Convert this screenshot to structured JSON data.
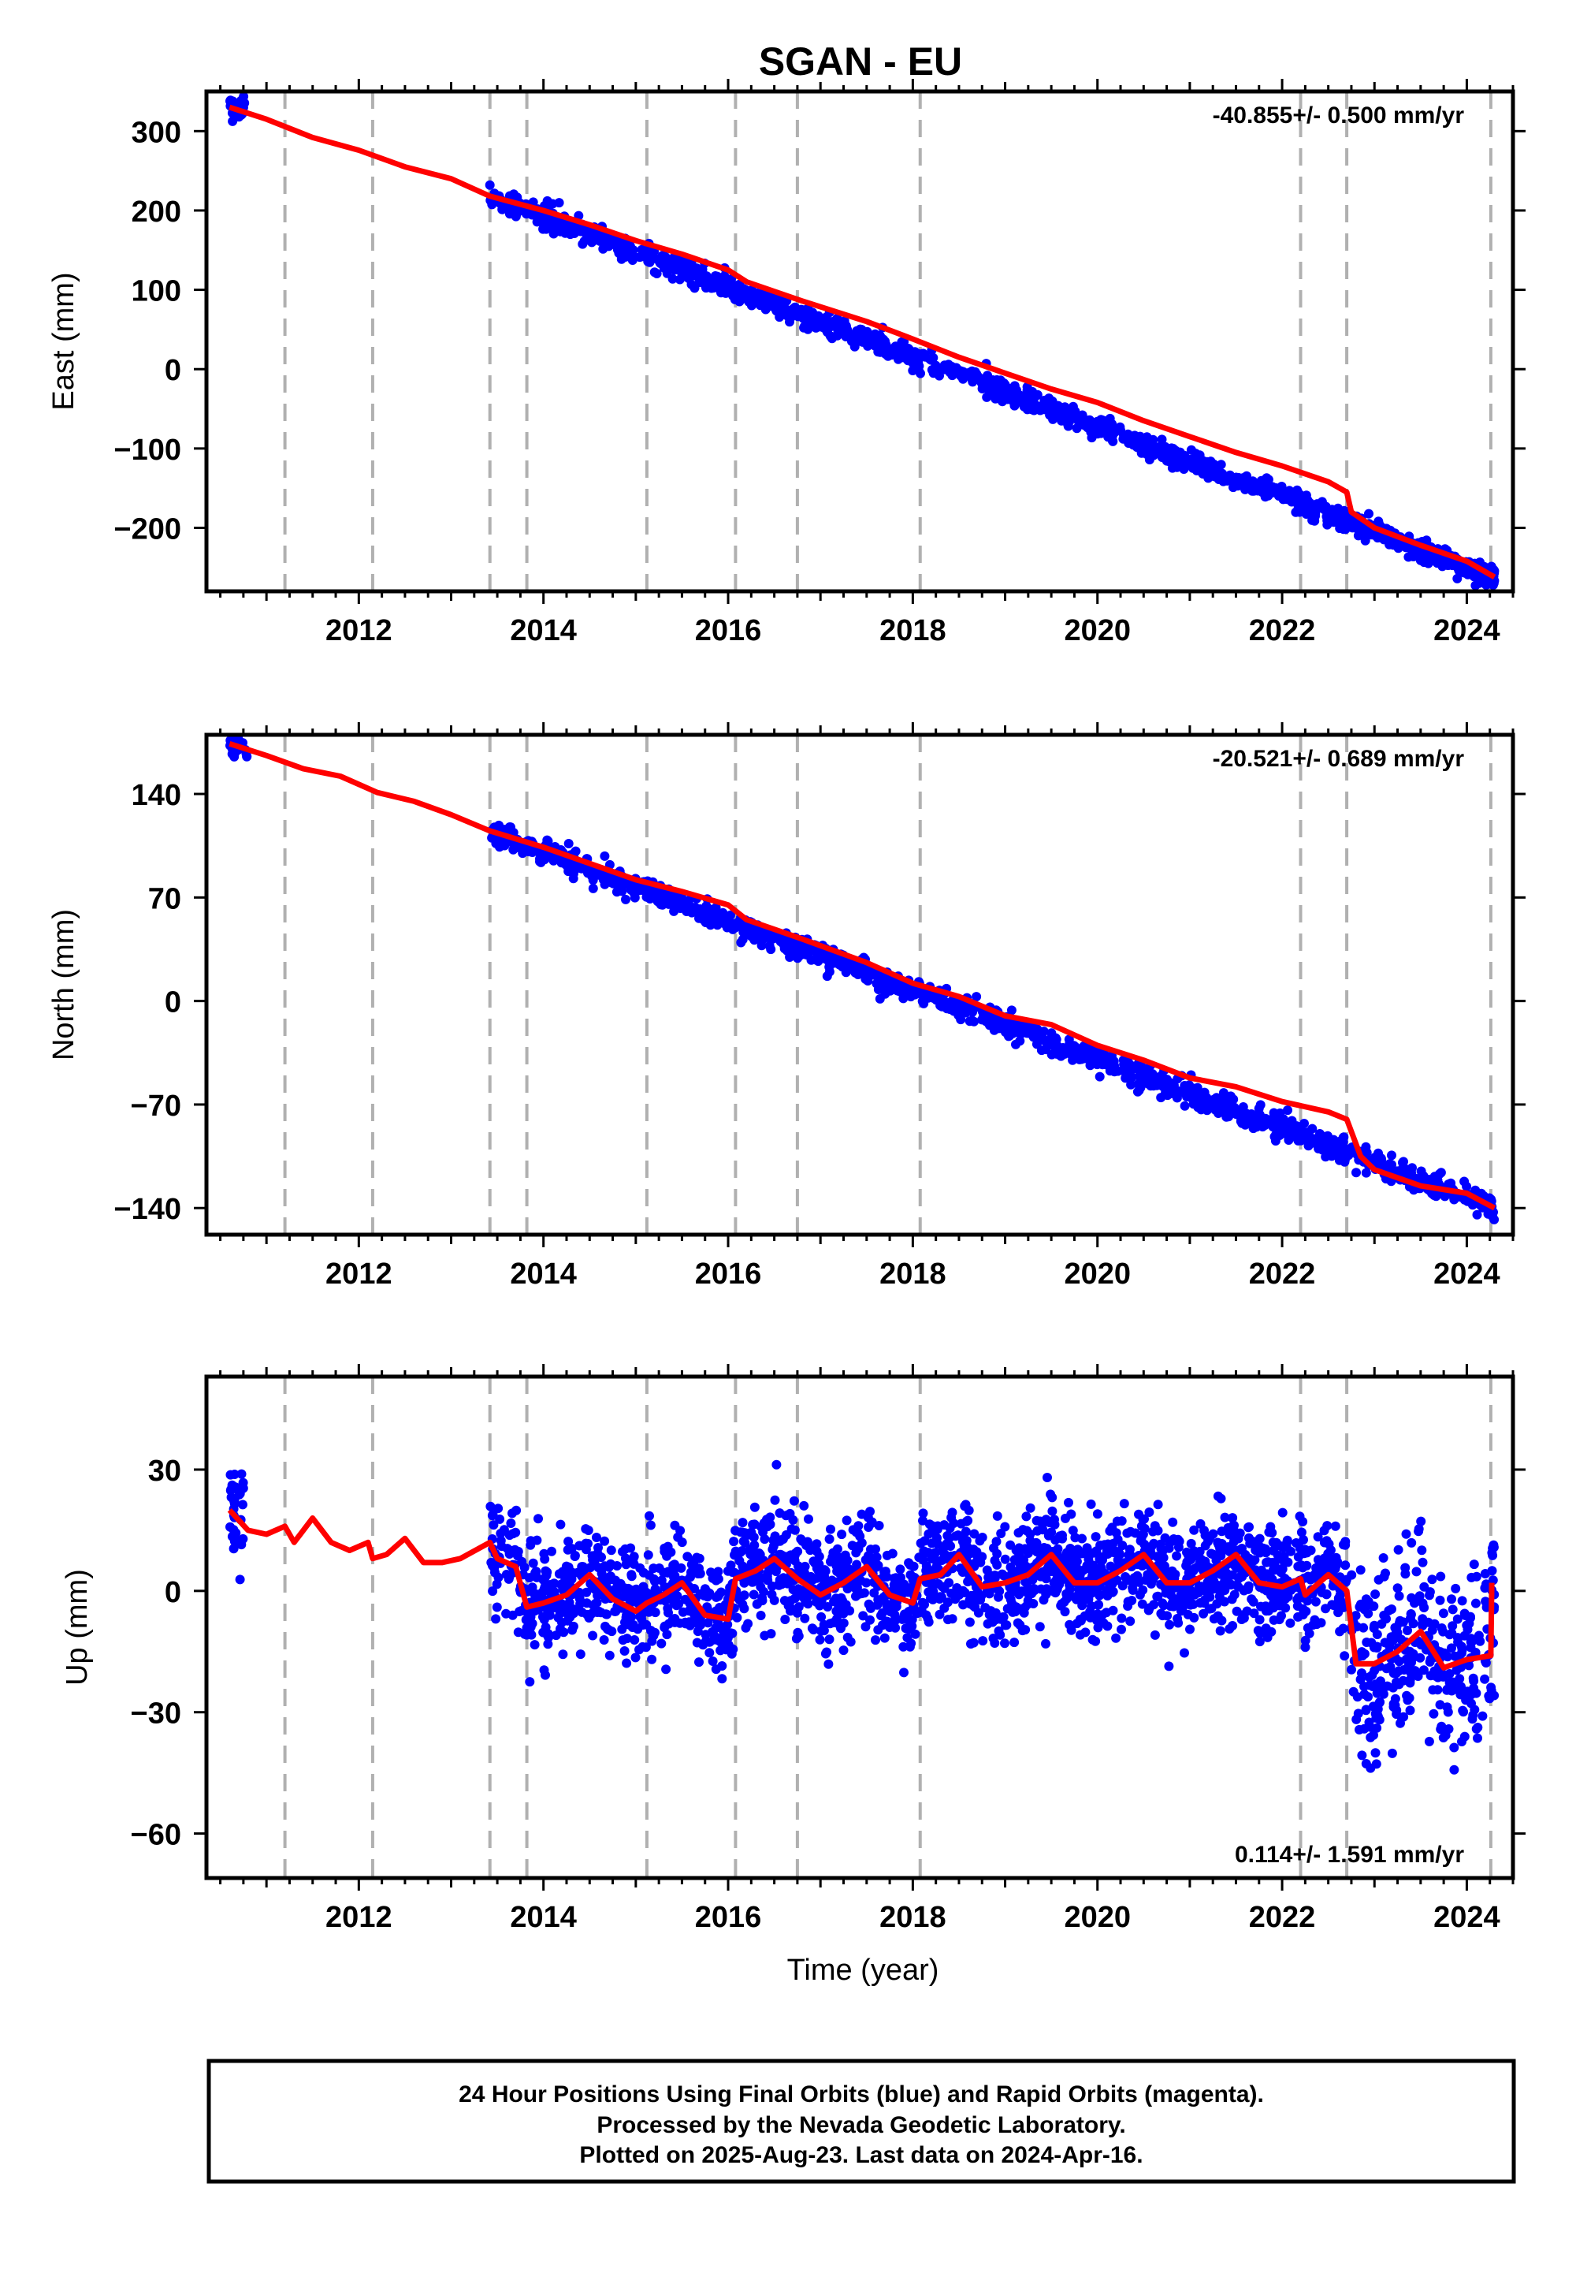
{
  "title": "SGAN - EU",
  "xlabel": "Time (year)",
  "footer": {
    "lines": [
      "24 Hour Positions Using Final Orbits (blue) and Rapid Orbits (magenta).",
      "Processed by the Nevada Geodetic Laboratory.",
      "Plotted on 2025-Aug-23. Last data on 2024-Apr-16."
    ]
  },
  "colors": {
    "data_points": "#0000ff",
    "model_line": "#ff0000",
    "event_lines": "#b0b0b0",
    "frame": "#000000"
  },
  "chart_data": [
    {
      "type": "scatter",
      "component": "east",
      "ylabel": "East (mm)",
      "rate": "-40.855+/- 0.500 mm/yr",
      "xlim": [
        2010.35,
        2024.5
      ],
      "ylim": [
        -280,
        350
      ],
      "xticks": [
        2012,
        2014,
        2016,
        2018,
        2020,
        2022,
        2024
      ],
      "yticks": [
        -200,
        -100,
        0,
        100,
        200,
        300
      ],
      "ytick_labels": [
        "−200",
        "−100",
        "0",
        "100",
        "200",
        "300"
      ],
      "events": [
        2011.2,
        2012.15,
        2013.42,
        2013.82,
        2015.12,
        2016.08,
        2016.75,
        2018.08,
        2022.2,
        2022.7,
        2024.26
      ],
      "model": {
        "x": [
          2010.6,
          2011.0,
          2011.5,
          2012.0,
          2012.5,
          2013.0,
          2013.42,
          2014.0,
          2014.5,
          2015.0,
          2015.5,
          2016.0,
          2016.2,
          2016.8,
          2017.5,
          2018.0,
          2018.5,
          2019.0,
          2019.5,
          2020.0,
          2020.5,
          2021.0,
          2021.5,
          2022.0,
          2022.5,
          2022.7,
          2022.75,
          2023.0,
          2023.5,
          2024.0,
          2024.3
        ],
        "y": [
          330,
          315,
          292,
          276,
          255,
          240,
          218,
          200,
          182,
          162,
          145,
          125,
          110,
          86,
          60,
          38,
          15,
          -5,
          -25,
          -42,
          -65,
          -85,
          -105,
          -122,
          -142,
          -155,
          -180,
          -200,
          -222,
          -242,
          -262
        ]
      },
      "scatter": {
        "segments": [
          [
            2010.6,
            2010.8,
            330,
            330
          ],
          [
            2013.42,
            2024.3,
            218,
            -262
          ]
        ],
        "noise": 7,
        "n": 1400,
        "seed": 11
      }
    },
    {
      "type": "scatter",
      "component": "north",
      "ylabel": "North (mm)",
      "rate": "-20.521+/- 0.689 mm/yr",
      "xlim": [
        2010.35,
        2024.5
      ],
      "ylim": [
        -158,
        180
      ],
      "xticks": [
        2012,
        2014,
        2016,
        2018,
        2020,
        2022,
        2024
      ],
      "yticks": [
        -140,
        -70,
        0,
        70,
        140
      ],
      "ytick_labels": [
        "−140",
        "−70",
        "0",
        "70",
        "140"
      ],
      "events": [
        2011.2,
        2012.15,
        2013.42,
        2013.82,
        2015.12,
        2016.08,
        2016.75,
        2018.08,
        2022.2,
        2022.7,
        2024.26
      ],
      "model": {
        "x": [
          2010.6,
          2011.0,
          2011.4,
          2011.8,
          2012.2,
          2012.6,
          2013.0,
          2013.42,
          2014.0,
          2014.5,
          2015.0,
          2015.5,
          2016.0,
          2016.2,
          2016.8,
          2017.5,
          2018.0,
          2018.5,
          2019.0,
          2019.5,
          2020.0,
          2020.5,
          2021.0,
          2021.5,
          2022.0,
          2022.5,
          2022.7,
          2022.85,
          2023.0,
          2023.5,
          2024.0,
          2024.3
        ],
        "y": [
          174,
          166,
          157,
          152,
          141,
          135,
          126,
          115,
          104,
          93,
          82,
          74,
          65,
          55,
          42,
          26,
          12,
          3,
          -10,
          -16,
          -30,
          -40,
          -52,
          -58,
          -68,
          -75,
          -80,
          -105,
          -114,
          -125,
          -130,
          -140
        ]
      },
      "scatter": {
        "segments": [
          [
            2010.6,
            2010.8,
            174,
            174
          ],
          [
            2013.42,
            2024.3,
            115,
            -140
          ]
        ],
        "noise": 4,
        "n": 1400,
        "seed": 23
      }
    },
    {
      "type": "scatter",
      "component": "up",
      "ylabel": "Up (mm)",
      "rate": "0.114+/- 1.591 mm/yr",
      "xlim": [
        2010.35,
        2024.5
      ],
      "ylim": [
        -71,
        53
      ],
      "xticks": [
        2012,
        2014,
        2016,
        2018,
        2020,
        2022,
        2024
      ],
      "yticks": [
        -60,
        -30,
        0,
        30
      ],
      "ytick_labels": [
        "−60",
        "−30",
        "0",
        "30"
      ],
      "events": [
        2011.2,
        2012.15,
        2013.42,
        2013.82,
        2015.12,
        2016.08,
        2016.75,
        2018.08,
        2022.2,
        2022.7,
        2024.26
      ],
      "model": {
        "x": [
          2010.6,
          2010.8,
          2011.0,
          2011.2,
          2011.3,
          2011.5,
          2011.7,
          2011.9,
          2012.1,
          2012.15,
          2012.3,
          2012.5,
          2012.7,
          2012.9,
          2013.1,
          2013.42,
          2013.5,
          2013.7,
          2013.82,
          2014.0,
          2014.25,
          2014.5,
          2014.75,
          2015.0,
          2015.12,
          2015.3,
          2015.5,
          2015.75,
          2016.0,
          2016.08,
          2016.3,
          2016.5,
          2016.75,
          2017.0,
          2017.25,
          2017.5,
          2017.75,
          2018.0,
          2018.08,
          2018.3,
          2018.5,
          2018.75,
          2019.0,
          2019.25,
          2019.5,
          2019.75,
          2020.0,
          2020.25,
          2020.5,
          2020.75,
          2021.0,
          2021.25,
          2021.5,
          2021.75,
          2022.0,
          2022.2,
          2022.25,
          2022.5,
          2022.7,
          2022.8,
          2023.0,
          2023.25,
          2023.5,
          2023.75,
          2024.0,
          2024.26,
          2024.27
        ],
        "y": [
          20,
          15,
          14,
          16,
          12,
          18,
          12,
          10,
          12,
          8,
          9,
          13,
          7,
          7,
          8,
          12,
          8,
          6,
          -4,
          -3,
          -1,
          4,
          -2,
          -5,
          -3,
          -1,
          2,
          -6,
          -7,
          3,
          5,
          8,
          3,
          -1,
          2,
          6,
          -1,
          -3,
          3,
          4,
          9,
          1,
          2,
          4,
          9,
          2,
          2,
          5,
          9,
          2,
          2,
          5,
          9,
          2,
          1,
          3,
          -1,
          4,
          0,
          -18,
          -18,
          -15,
          -10,
          -19,
          -17,
          -16,
          2
        ]
      },
      "scatter": {
        "segments": [
          [
            2010.6,
            2010.75,
            20,
            15
          ],
          [
            2013.42,
            2022.7,
            5,
            3
          ],
          [
            2022.75,
            2024.3,
            -18,
            -17
          ]
        ],
        "noise": 7,
        "n": 2400,
        "seed": 37,
        "follow_model": true
      }
    }
  ]
}
